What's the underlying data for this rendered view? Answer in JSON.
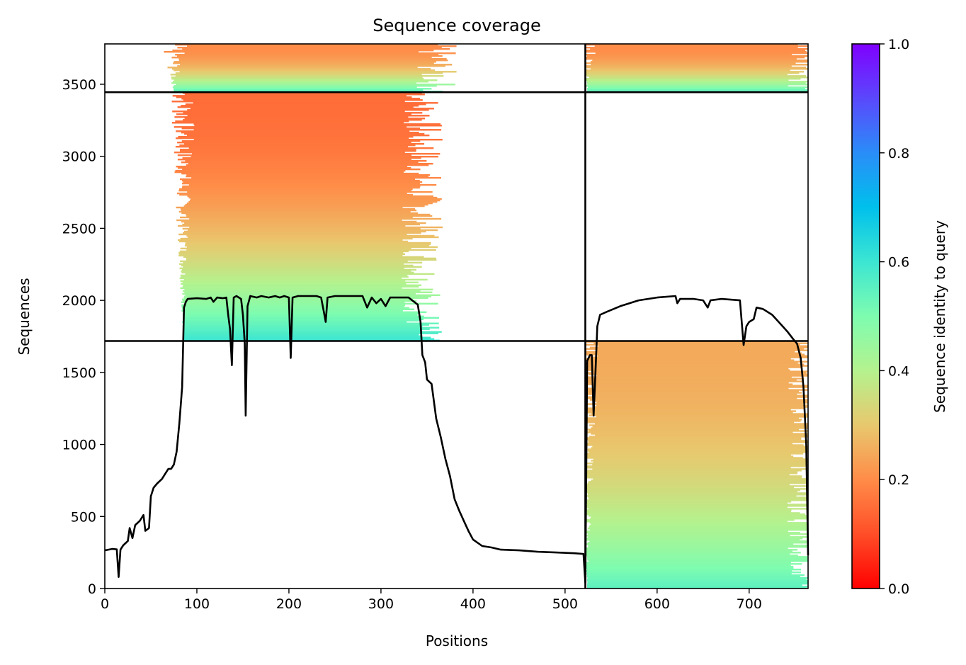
{
  "chart_data": {
    "type": "heatmap",
    "title": "Sequence coverage",
    "xlabel": "Positions",
    "ylabel": "Sequences",
    "colorbar_label": "Sequence identity to query",
    "colormap": "rainbow_r",
    "xlim": [
      0,
      764
    ],
    "ylim": [
      0,
      3780
    ],
    "clim": [
      0,
      1
    ],
    "x_ticks": [
      0,
      100,
      200,
      300,
      400,
      500,
      600,
      700
    ],
    "y_ticks": [
      0,
      500,
      1000,
      1500,
      2000,
      2500,
      3000,
      3500
    ],
    "colorbar_ticks": [
      0.0,
      0.2,
      0.4,
      0.6,
      0.8,
      1.0
    ],
    "colorbar_tick_labels": [
      "0.0",
      "0.2",
      "0.4",
      "0.6",
      "0.8",
      "1.0"
    ],
    "chain_boundary_x": 522,
    "group_boundaries_y": [
      1718,
      3445
    ],
    "blocks": [
      {
        "name": "chain1-group2",
        "x": [
          0,
          522
        ],
        "y": [
          1718,
          3445
        ],
        "identity_bottom": 0.15,
        "identity_top": 0.6,
        "fill_start": 85,
        "fill_end": 345
      },
      {
        "name": "chain1-group3",
        "x": [
          0,
          522
        ],
        "y": [
          3445,
          3780
        ],
        "identity_bottom": 0.2,
        "identity_top": 0.55,
        "fill_start": 75,
        "fill_end": 360
      },
      {
        "name": "chain2-group1",
        "x": [
          522,
          764
        ],
        "y": [
          0,
          1718
        ],
        "identity_bottom": 0.25,
        "identity_top": 0.55,
        "fill_start": 524,
        "fill_end": 764
      },
      {
        "name": "chain2-group3",
        "x": [
          522,
          764
        ],
        "y": [
          3445,
          3780
        ],
        "identity_bottom": 0.2,
        "identity_top": 0.55,
        "fill_start": 524,
        "fill_end": 764
      }
    ],
    "coverage_line": [
      [
        0,
        265
      ],
      [
        8,
        275
      ],
      [
        13,
        272
      ],
      [
        15,
        80
      ],
      [
        17,
        270
      ],
      [
        20,
        300
      ],
      [
        25,
        330
      ],
      [
        27,
        420
      ],
      [
        30,
        350
      ],
      [
        33,
        440
      ],
      [
        38,
        470
      ],
      [
        42,
        510
      ],
      [
        44,
        400
      ],
      [
        48,
        420
      ],
      [
        50,
        640
      ],
      [
        53,
        700
      ],
      [
        57,
        730
      ],
      [
        62,
        760
      ],
      [
        66,
        800
      ],
      [
        69,
        830
      ],
      [
        72,
        830
      ],
      [
        75,
        860
      ],
      [
        78,
        950
      ],
      [
        81,
        1150
      ],
      [
        84,
        1400
      ],
      [
        86,
        1950
      ],
      [
        88,
        1990
      ],
      [
        90,
        2010
      ],
      [
        100,
        2015
      ],
      [
        110,
        2010
      ],
      [
        115,
        2020
      ],
      [
        118,
        1990
      ],
      [
        122,
        2020
      ],
      [
        128,
        2015
      ],
      [
        132,
        2020
      ],
      [
        134,
        1900
      ],
      [
        136,
        1800
      ],
      [
        138,
        1550
      ],
      [
        140,
        2020
      ],
      [
        143,
        2030
      ],
      [
        148,
        2010
      ],
      [
        150,
        1900
      ],
      [
        152,
        1700
      ],
      [
        153,
        1200
      ],
      [
        155,
        1960
      ],
      [
        158,
        2030
      ],
      [
        165,
        2020
      ],
      [
        170,
        2030
      ],
      [
        178,
        2020
      ],
      [
        185,
        2030
      ],
      [
        190,
        2020
      ],
      [
        195,
        2030
      ],
      [
        200,
        2020
      ],
      [
        202,
        1600
      ],
      [
        204,
        2020
      ],
      [
        210,
        2030
      ],
      [
        220,
        2030
      ],
      [
        230,
        2030
      ],
      [
        235,
        2020
      ],
      [
        238,
        1920
      ],
      [
        240,
        1850
      ],
      [
        242,
        2020
      ],
      [
        250,
        2030
      ],
      [
        260,
        2030
      ],
      [
        270,
        2030
      ],
      [
        280,
        2030
      ],
      [
        285,
        1950
      ],
      [
        290,
        2020
      ],
      [
        295,
        1980
      ],
      [
        300,
        2010
      ],
      [
        305,
        1960
      ],
      [
        310,
        2020
      ],
      [
        320,
        2020
      ],
      [
        330,
        2020
      ],
      [
        340,
        1970
      ],
      [
        343,
        1850
      ],
      [
        345,
        1620
      ],
      [
        348,
        1570
      ],
      [
        350,
        1450
      ],
      [
        355,
        1420
      ],
      [
        360,
        1180
      ],
      [
        365,
        1050
      ],
      [
        370,
        900
      ],
      [
        375,
        780
      ],
      [
        380,
        620
      ],
      [
        385,
        540
      ],
      [
        390,
        470
      ],
      [
        395,
        400
      ],
      [
        400,
        340
      ],
      [
        410,
        295
      ],
      [
        420,
        285
      ],
      [
        430,
        270
      ],
      [
        450,
        265
      ],
      [
        470,
        255
      ],
      [
        490,
        250
      ],
      [
        510,
        245
      ],
      [
        520,
        240
      ],
      [
        522,
        40
      ],
      [
        524,
        1580
      ],
      [
        527,
        1620
      ],
      [
        529,
        1620
      ],
      [
        531,
        1200
      ],
      [
        533,
        1500
      ],
      [
        535,
        1820
      ],
      [
        538,
        1900
      ],
      [
        545,
        1920
      ],
      [
        560,
        1960
      ],
      [
        580,
        2000
      ],
      [
        600,
        2020
      ],
      [
        620,
        2030
      ],
      [
        622,
        1980
      ],
      [
        625,
        2010
      ],
      [
        640,
        2010
      ],
      [
        650,
        2000
      ],
      [
        655,
        1950
      ],
      [
        658,
        2000
      ],
      [
        670,
        2010
      ],
      [
        690,
        2000
      ],
      [
        694,
        1690
      ],
      [
        697,
        1820
      ],
      [
        700,
        1850
      ],
      [
        705,
        1870
      ],
      [
        708,
        1950
      ],
      [
        715,
        1940
      ],
      [
        725,
        1900
      ],
      [
        735,
        1830
      ],
      [
        742,
        1780
      ],
      [
        748,
        1730
      ],
      [
        752,
        1700
      ],
      [
        756,
        1600
      ],
      [
        759,
        1400
      ],
      [
        762,
        1000
      ],
      [
        764,
        230
      ]
    ]
  }
}
